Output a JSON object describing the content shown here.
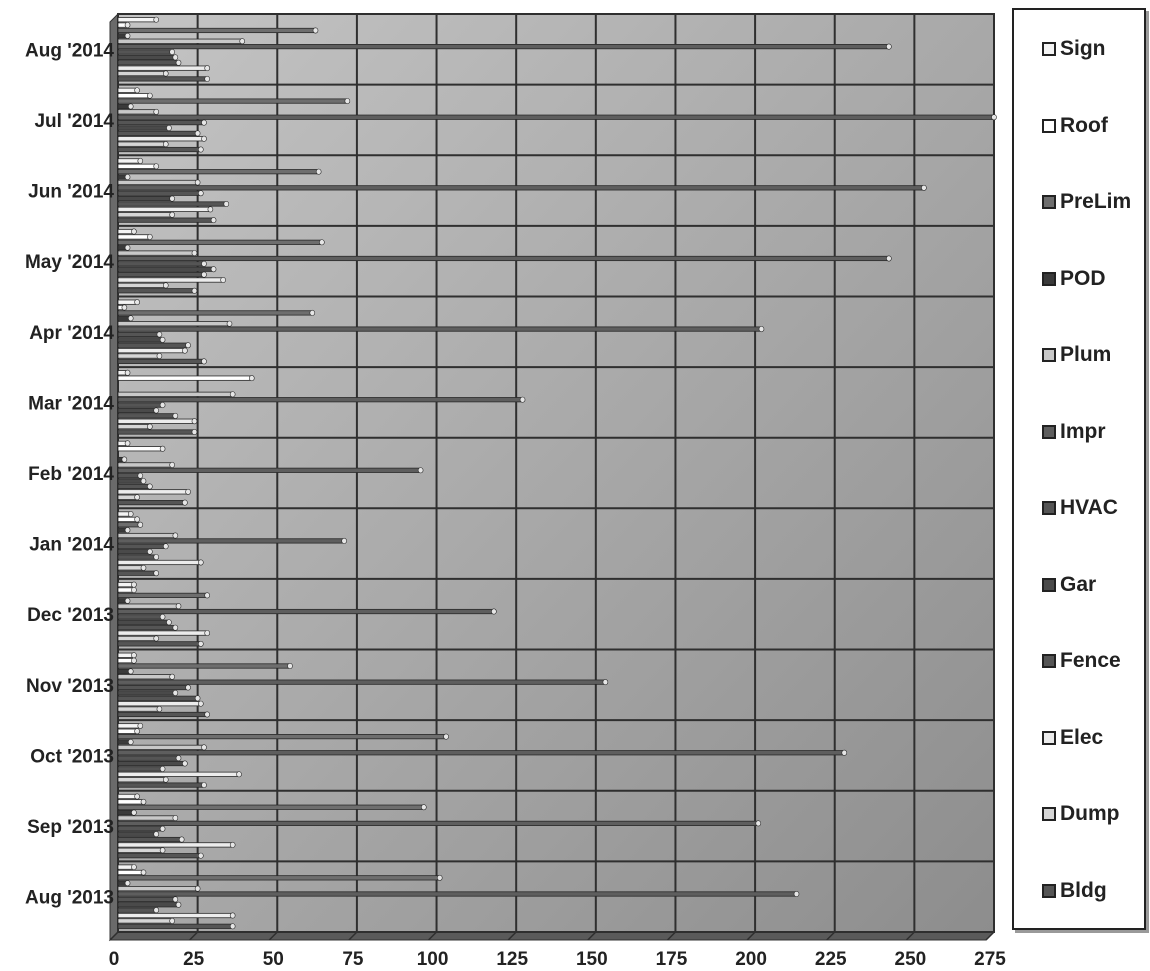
{
  "chart_data": {
    "type": "bar",
    "orientation": "horizontal",
    "title": "",
    "xlabel": "",
    "ylabel": "",
    "xlim": [
      0,
      275
    ],
    "xticks": [
      0,
      25,
      50,
      75,
      100,
      125,
      150,
      175,
      200,
      225,
      250,
      275
    ],
    "grid": true,
    "legend_position": "right",
    "categories": [
      "Aug '2013",
      "Sep '2013",
      "Oct '2013",
      "Nov '2013",
      "Dec '2013",
      "Jan '2014",
      "Feb '2014",
      "Mar '2014",
      "Apr '2014",
      "May '2014",
      "Jun '2014",
      "Jul '2014",
      "Aug '2014"
    ],
    "series": [
      {
        "name": "Sign",
        "color": "#f4f4f4",
        "values": [
          5,
          6,
          7,
          5,
          5,
          4,
          3,
          3,
          6,
          5,
          7,
          6,
          12
        ]
      },
      {
        "name": "Roof",
        "color": "#ffffff",
        "values": [
          8,
          8,
          6,
          5,
          5,
          6,
          14,
          42,
          2,
          10,
          12,
          10,
          3
        ]
      },
      {
        "name": "PreLim",
        "color": "#6e6e6e",
        "values": [
          101,
          96,
          103,
          54,
          28,
          7,
          0,
          0,
          61,
          64,
          63,
          72,
          62
        ]
      },
      {
        "name": "POD",
        "color": "#3a3a3a",
        "values": [
          3,
          5,
          4,
          4,
          3,
          3,
          2,
          0,
          4,
          3,
          3,
          4,
          3
        ]
      },
      {
        "name": "Plum",
        "color": "#c8c8c8",
        "values": [
          25,
          18,
          27,
          17,
          19,
          18,
          17,
          36,
          35,
          24,
          25,
          12,
          39
        ]
      },
      {
        "name": "Impr",
        "color": "#5e5e5e",
        "values": [
          213,
          201,
          228,
          153,
          118,
          71,
          95,
          127,
          202,
          242,
          253,
          280,
          242
        ]
      },
      {
        "name": "HVAC",
        "color": "#555555",
        "values": [
          18,
          14,
          19,
          22,
          14,
          15,
          7,
          14,
          13,
          27,
          26,
          27,
          17
        ]
      },
      {
        "name": "Gar",
        "color": "#4a4a4a",
        "values": [
          19,
          12,
          21,
          18,
          16,
          10,
          8,
          12,
          14,
          30,
          17,
          16,
          18
        ]
      },
      {
        "name": "Fence",
        "color": "#555555",
        "values": [
          12,
          20,
          14,
          25,
          18,
          12,
          10,
          18,
          22,
          27,
          34,
          25,
          19
        ]
      },
      {
        "name": "Elec",
        "color": "#ececec",
        "values": [
          36,
          36,
          38,
          26,
          28,
          26,
          22,
          24,
          21,
          33,
          29,
          27,
          28
        ]
      },
      {
        "name": "Dump",
        "color": "#d6d6d6",
        "values": [
          17,
          14,
          15,
          13,
          12,
          8,
          6,
          10,
          13,
          15,
          17,
          15,
          15
        ]
      },
      {
        "name": "Bldg",
        "color": "#555555",
        "values": [
          36,
          26,
          27,
          28,
          26,
          12,
          21,
          24,
          27,
          24,
          30,
          26,
          28
        ]
      }
    ]
  }
}
